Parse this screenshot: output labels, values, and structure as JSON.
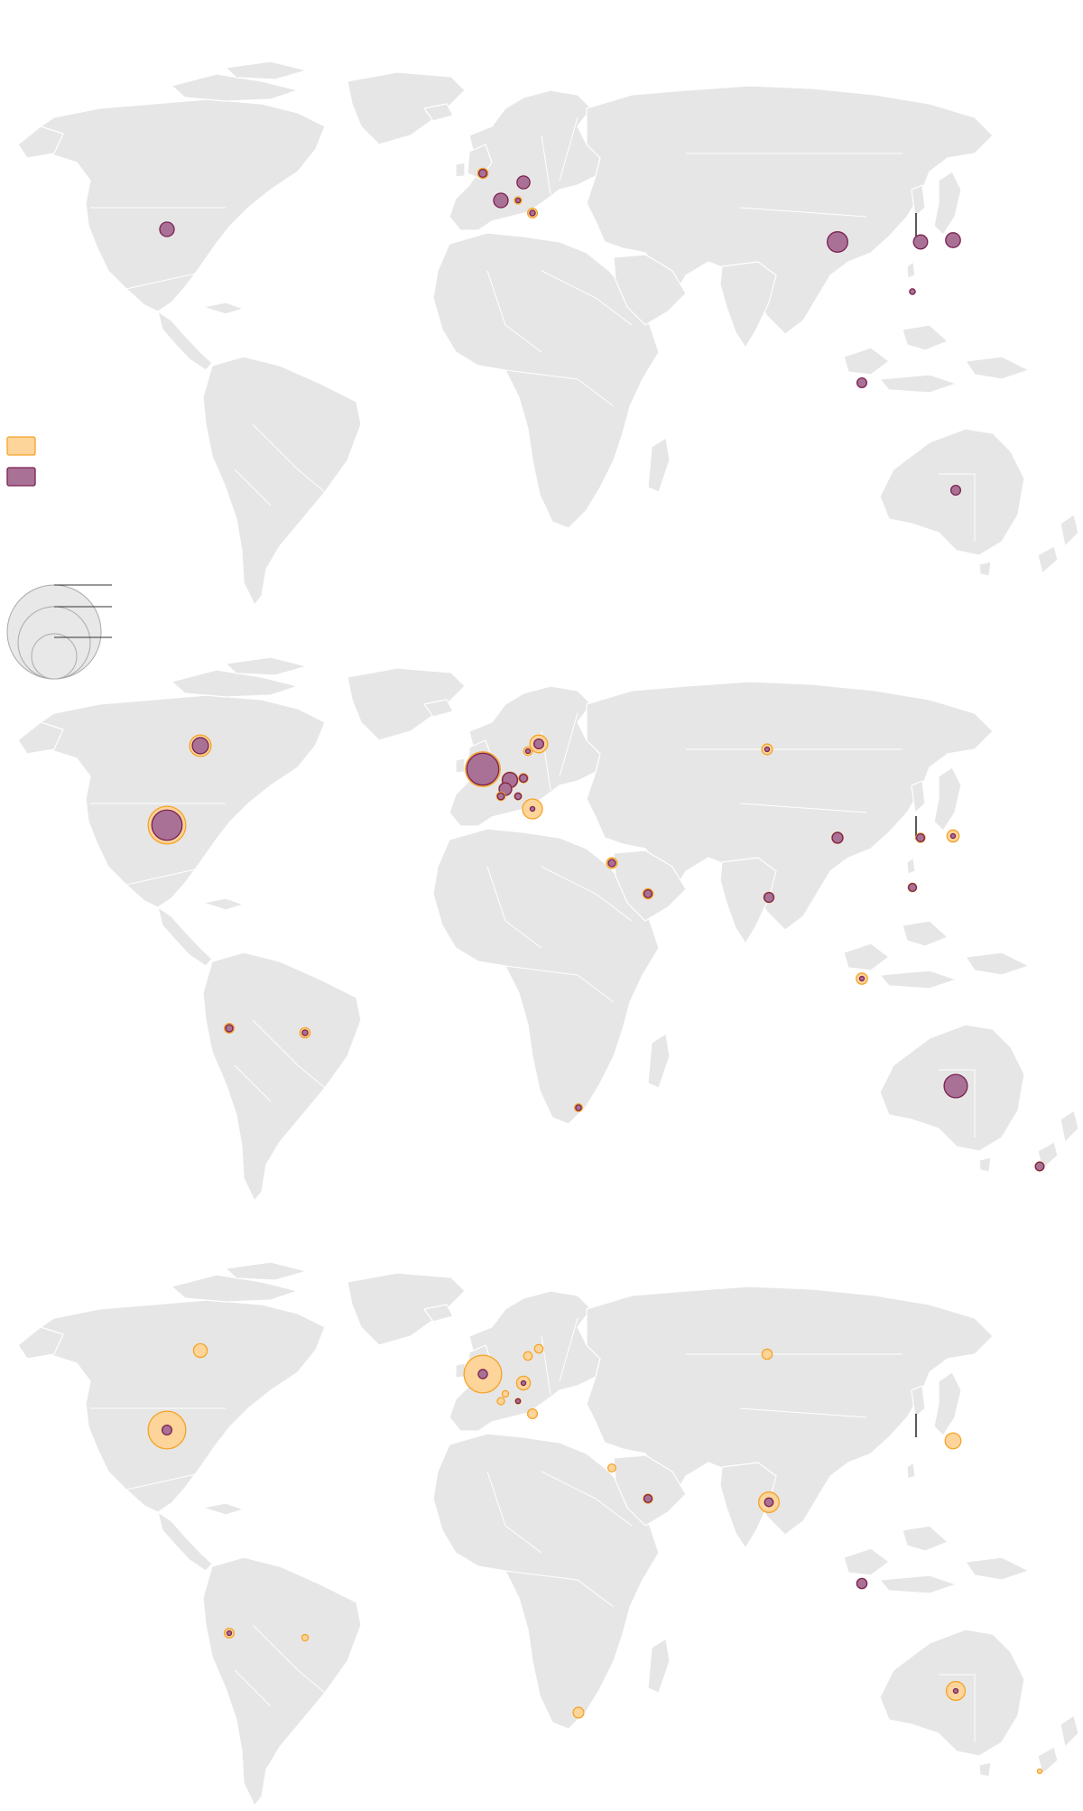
{
  "colors": {
    "land": "#e6e6e6",
    "outer_fill": "#fdd49a",
    "outer_stroke": "#f5a428",
    "inner_fill": "#a97196",
    "inner_stroke": "#7a2250"
  },
  "legend": {
    "swatches": [
      {
        "id": "outer",
        "label": ""
      },
      {
        "id": "inner",
        "label": ""
      }
    ],
    "size_key": [
      {
        "label": ""
      },
      {
        "label": ""
      },
      {
        "label": ""
      }
    ]
  },
  "maps": [
    {
      "id": "map-1",
      "bubbles": [
        {
          "region": "usa",
          "outer": 0.45,
          "inner": 1.0
        },
        {
          "region": "uk",
          "outer": 0.5,
          "inner": 0.3
        },
        {
          "region": "france",
          "outer": 0.2,
          "inner": 1.0
        },
        {
          "region": "germany",
          "outer": 0.3,
          "inner": 0.8
        },
        {
          "region": "switzerland",
          "outer": 0.25,
          "inner": 0.1
        },
        {
          "region": "italy",
          "outer": 0.45,
          "inner": 0.15
        },
        {
          "region": "china",
          "outer": 0.1,
          "inner": 2.0
        },
        {
          "region": "korea",
          "outer": 0.1,
          "inner": 0.95
        },
        {
          "region": "japan",
          "outer": 0.1,
          "inner": 1.05
        },
        {
          "region": "taiwan",
          "outer": 0.15,
          "inner": 0.15
        },
        {
          "region": "singapore",
          "outer": 0.1,
          "inner": 0.45
        },
        {
          "region": "australia",
          "outer": 0.1,
          "inner": 0.45
        }
      ]
    },
    {
      "id": "map-2",
      "bubbles": [
        {
          "region": "usa",
          "outer": 6.8,
          "inner": 4.4
        },
        {
          "region": "canada",
          "outer": 2.2,
          "inner": 1.25
        },
        {
          "region": "uk",
          "outer": 5.8,
          "inner": 4.9
        },
        {
          "region": "france",
          "outer": 0.35,
          "inner": 0.22
        },
        {
          "region": "germany",
          "outer": 0.4,
          "inner": 0.3
        },
        {
          "region": "switzerland",
          "outer": 0.25,
          "inner": 0.2
        },
        {
          "region": "italy",
          "outer": 1.9,
          "inner": 0.1
        },
        {
          "region": "netherlands",
          "outer": 1.2,
          "inner": 1.1
        },
        {
          "region": "belgium",
          "outer": 0.8,
          "inner": 0.75
        },
        {
          "region": "denmark",
          "outer": 0.35,
          "inner": 0.1
        },
        {
          "region": "sweden",
          "outer": 1.5,
          "inner": 0.45
        },
        {
          "region": "russia",
          "outer": 0.55,
          "inner": 0.1
        },
        {
          "region": "israel",
          "outer": 0.55,
          "inner": 0.25
        },
        {
          "region": "saudi",
          "outer": 0.5,
          "inner": 0.3
        },
        {
          "region": "india",
          "outer": 0.5,
          "inner": 0.45
        },
        {
          "region": "china",
          "outer": 0.6,
          "inner": 0.55
        },
        {
          "region": "korea",
          "outer": 0.4,
          "inner": 0.3
        },
        {
          "region": "japan",
          "outer": 0.7,
          "inner": 0.1
        },
        {
          "region": "taiwan",
          "outer": 0.35,
          "inner": 0.3
        },
        {
          "region": "singapore",
          "outer": 0.6,
          "inner": 0.1
        },
        {
          "region": "australia",
          "outer": 1.6,
          "inner": 2.6
        },
        {
          "region": "newzealand",
          "outer": 0.4,
          "inner": 0.35
        },
        {
          "region": "peru",
          "outer": 0.45,
          "inner": 0.25
        },
        {
          "region": "brazil",
          "outer": 0.5,
          "inner": 0.15
        },
        {
          "region": "southafrica",
          "outer": 0.3,
          "inner": 0.15
        }
      ]
    },
    {
      "id": "map-3",
      "bubbles": [
        {
          "region": "usa",
          "outer": 6.8,
          "inner": 0.45
        },
        {
          "region": "canada",
          "outer": 0.9,
          "inner": 0.0
        },
        {
          "region": "uk",
          "outer": 6.8,
          "inner": 0.4
        },
        {
          "region": "france",
          "outer": 0.25,
          "inner": 0.0
        },
        {
          "region": "germany",
          "outer": 0.9,
          "inner": 0.1
        },
        {
          "region": "switzerland",
          "outer": 0.15,
          "inner": 0.1
        },
        {
          "region": "italy",
          "outer": 0.45,
          "inner": 0.0
        },
        {
          "region": "belgium",
          "outer": 0.2,
          "inner": 0.0
        },
        {
          "region": "denmark",
          "outer": 0.35,
          "inner": 0.0
        },
        {
          "region": "sweden",
          "outer": 0.35,
          "inner": 0.0
        },
        {
          "region": "russia",
          "outer": 0.5,
          "inner": 0.0
        },
        {
          "region": "israel",
          "outer": 0.3,
          "inner": 0.0
        },
        {
          "region": "saudi",
          "outer": 0.4,
          "inner": 0.3
        },
        {
          "region": "india",
          "outer": 2.0,
          "inner": 0.35
        },
        {
          "region": "japan",
          "outer": 1.2,
          "inner": 0.0
        },
        {
          "region": "singapore",
          "outer": 0.1,
          "inner": 0.5
        },
        {
          "region": "australia",
          "outer": 1.7,
          "inner": 0.1
        },
        {
          "region": "newzealand",
          "outer": 0.1,
          "inner": 0.0
        },
        {
          "region": "peru",
          "outer": 0.45,
          "inner": 0.1
        },
        {
          "region": "brazil",
          "outer": 0.2,
          "inner": 0.0
        },
        {
          "region": "southafrica",
          "outer": 0.55,
          "inner": 0.0
        }
      ]
    }
  ]
}
